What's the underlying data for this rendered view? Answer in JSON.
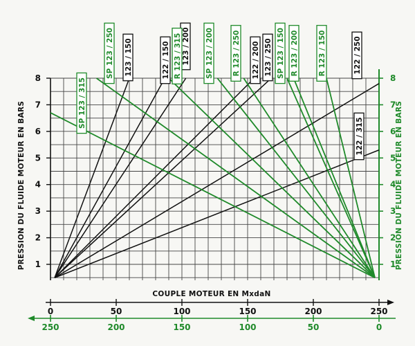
{
  "chart_data": {
    "type": "line",
    "left_axis": {
      "title": "PRESSION DU FLUIDE MOTEUR EN BARS",
      "ticks": [
        "1",
        "2",
        "3",
        "4",
        "5",
        "6",
        "7",
        "8"
      ],
      "color": "#111111"
    },
    "right_axis": {
      "title": "PRESSION DU FLUIDE MOTEUR EN BARS",
      "ticks": [
        "1",
        "2",
        "3",
        "4",
        "5",
        "6",
        "7",
        "8"
      ],
      "color": "#1f8a2a"
    },
    "x_axis_title": "COUPLE MOTEUR EN MxdaN",
    "x_axis_black": {
      "ticks": [
        "0",
        "50",
        "100",
        "150",
        "200",
        "250"
      ],
      "color": "#111111"
    },
    "x_axis_green": {
      "ticks": [
        "250",
        "200",
        "150",
        "100",
        "50",
        "0"
      ],
      "color": "#1f8a2a"
    },
    "grid": true,
    "series_black": [
      {
        "name": "123 / 150",
        "x": [
          0,
          60
        ],
        "y": [
          0.6,
          8
        ]
      },
      {
        "name": "122 / 150",
        "x": [
          0,
          87
        ],
        "y": [
          0.6,
          8
        ]
      },
      {
        "name": "123 / 200",
        "x": [
          0,
          103
        ],
        "y": [
          0.6,
          8
        ]
      },
      {
        "name": "122 / 200",
        "x": [
          0,
          155
        ],
        "y": [
          0.6,
          8
        ]
      },
      {
        "name": "123 / 250",
        "x": [
          0,
          168
        ],
        "y": [
          0.6,
          8
        ]
      },
      {
        "name": "122 / 250",
        "x": [
          0,
          250
        ],
        "y": [
          0.6,
          7.8
        ]
      },
      {
        "name": "122 / 315",
        "x": [
          0,
          250
        ],
        "y": [
          0.6,
          5.3
        ]
      }
    ],
    "series_green": [
      {
        "name": "SP 123 / 315",
        "x_green": [
          0,
          250
        ],
        "y": [
          0.6,
          6.7
        ]
      },
      {
        "name": "SP 123 / 250",
        "x_green": [
          0,
          215
        ],
        "y": [
          0.6,
          8
        ]
      },
      {
        "name": "R 123 / 315",
        "x_green": [
          0,
          160
        ],
        "y": [
          0.6,
          8
        ]
      },
      {
        "name": "SP 123 / 200",
        "x_green": [
          0,
          123
        ],
        "y": [
          0.6,
          8
        ]
      },
      {
        "name": "R 123 / 250",
        "x_green": [
          0,
          103
        ],
        "y": [
          0.6,
          8
        ]
      },
      {
        "name": "SP 123 / 150",
        "x_green": [
          0,
          70
        ],
        "y": [
          0.6,
          8
        ]
      },
      {
        "name": "R 123 / 200",
        "x_green": [
          0,
          65
        ],
        "y": [
          0.6,
          8
        ]
      },
      {
        "name": "R 123 / 150",
        "x_green": [
          0,
          40
        ],
        "y": [
          0.6,
          8
        ]
      }
    ]
  }
}
